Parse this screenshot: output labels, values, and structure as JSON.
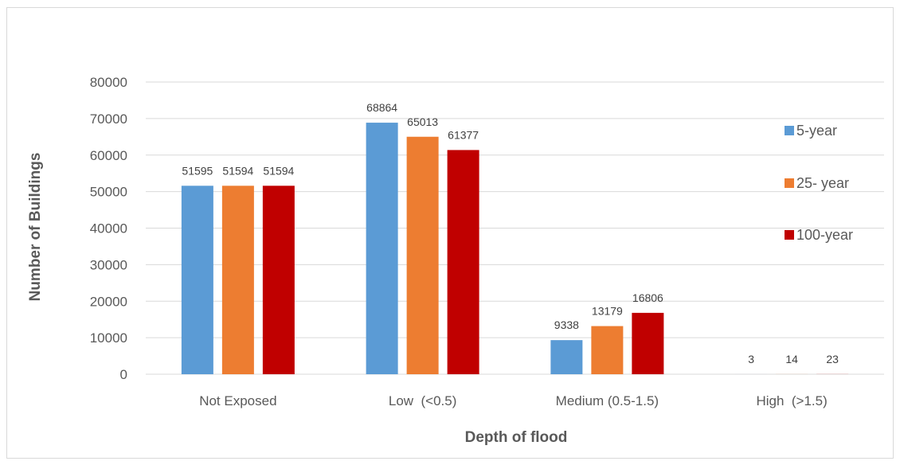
{
  "chart_data": {
    "type": "bar",
    "title": "",
    "xlabel": "Depth of flood",
    "ylabel": "Number of Buildings",
    "categories": [
      "Not Exposed",
      "Low  (<0.5)",
      "Medium (0.5-1.5)",
      "High  (>1.5)"
    ],
    "series": [
      {
        "name": "5-year",
        "color": "#5b9bd5",
        "values": [
          51595,
          68864,
          9338,
          3
        ]
      },
      {
        "name": "25- year",
        "color": "#ed7d31",
        "values": [
          51594,
          65013,
          13179,
          14
        ]
      },
      {
        "name": "100-year",
        "color": "#c00000",
        "values": [
          51594,
          61377,
          16806,
          23
        ]
      }
    ],
    "ylim": [
      0,
      80000
    ],
    "yticks": [
      0,
      10000,
      20000,
      30000,
      40000,
      50000,
      60000,
      70000,
      80000
    ],
    "grid": true,
    "gridColor": "#d9d9d9",
    "legend": "right",
    "dataLabels": true
  }
}
